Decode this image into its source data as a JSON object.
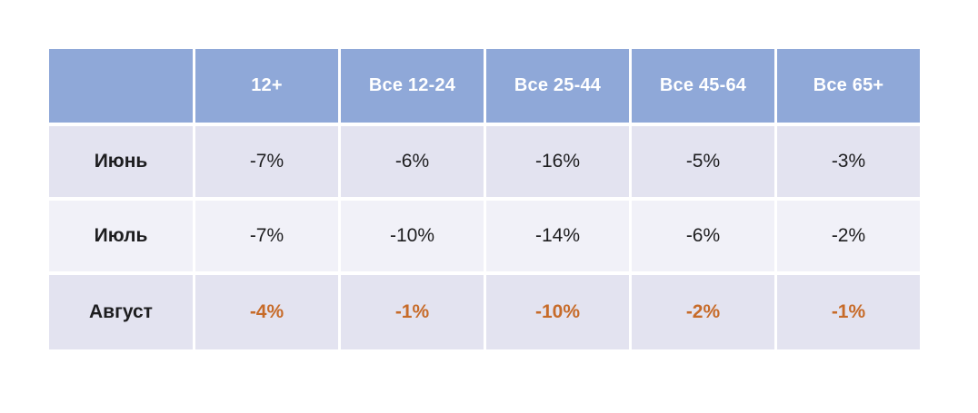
{
  "table": {
    "columns": [
      "",
      "12+",
      "Все 12-24",
      "Все 25-44",
      "Все 45-64",
      "Все 65+"
    ],
    "rows": [
      {
        "label": "Июнь",
        "values": [
          "-7%",
          "-6%",
          "-16%",
          "-5%",
          "-3%"
        ],
        "highlighted": false
      },
      {
        "label": "Июль",
        "values": [
          "-7%",
          "-10%",
          "-14%",
          "-6%",
          "-2%"
        ],
        "highlighted": false
      },
      {
        "label": "Август",
        "values": [
          "-4%",
          "-1%",
          "-10%",
          "-2%",
          "-1%"
        ],
        "highlighted": true
      }
    ]
  },
  "colors": {
    "header_bg": "#8FA8D8",
    "header_text": "#FFFFFF",
    "row_bg_dark": "#E3E3F0",
    "row_bg_light": "#F1F1F8",
    "body_text": "#1D1D1F",
    "highlight_text": "#C76B29"
  },
  "chart_data": {
    "type": "table",
    "columns": [
      "",
      "12+",
      "Все 12-24",
      "Все 25-44",
      "Все 45-64",
      "Все 65+"
    ],
    "rows": [
      [
        "Июнь",
        "-7%",
        "-6%",
        "-16%",
        "-5%",
        "-3%"
      ],
      [
        "Июль",
        "-7%",
        "-10%",
        "-14%",
        "-6%",
        "-2%"
      ],
      [
        "Август",
        "-4%",
        "-1%",
        "-10%",
        "-2%",
        "-1%"
      ]
    ],
    "notes": "Values of the last row (Август) are emphasized in bold orange; header row has blue background with white bold text; data rows alternate lavender shades."
  }
}
